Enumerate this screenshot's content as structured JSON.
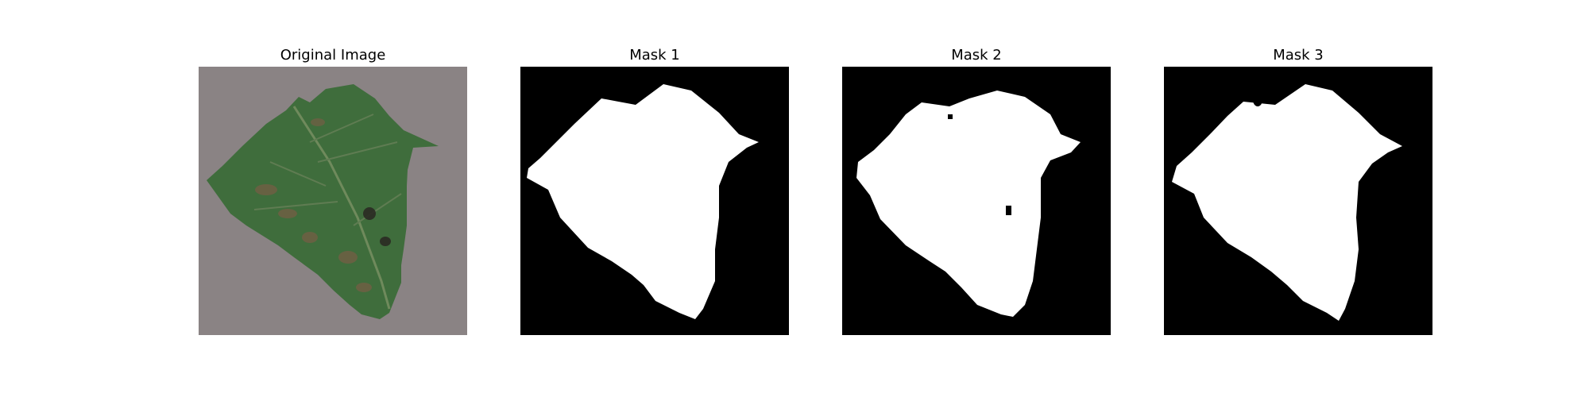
{
  "figure": {
    "panels": [
      {
        "title": "Original Image",
        "kind": "photo"
      },
      {
        "title": "Mask 1",
        "kind": "mask"
      },
      {
        "title": "Mask 2",
        "kind": "mask"
      },
      {
        "title": "Mask 3",
        "kind": "mask"
      }
    ]
  },
  "colors": {
    "background": "#ffffff",
    "mask_background": "#000000",
    "mask_foreground": "#ffffff",
    "photo_background": "#8a8384",
    "leaf": "#3f6d3c",
    "leaf_dark": "#2f5330",
    "leaf_spots": "#6e5f43"
  }
}
